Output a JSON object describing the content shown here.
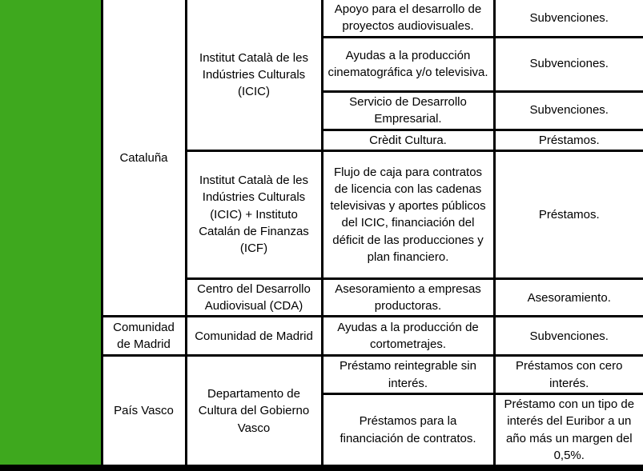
{
  "colors": {
    "band_green": "#3EA81E",
    "border_black": "#000000"
  },
  "table": {
    "regions": {
      "cataluna": "Cataluña",
      "comunidad_de_madrid": "Comunidad de Madrid",
      "pais_vasco": "País Vasco"
    },
    "institutions": {
      "icic": "Institut Català de les Indústries Culturals (ICIC)",
      "icic_icf": "Institut Català de les Indústries Culturals (ICIC) + Instituto Catalán de Finanzas (ICF)",
      "cda": "Centro del Desarrollo Audiovisual (CDA)",
      "comunidad_de_madrid": "Comunidad de Madrid",
      "gobierno_vasco": "Departamento de Cultura del Gobierno Vasco"
    },
    "rows": [
      {
        "description": "Apoyo para el desarrollo de proyectos audiovisuales.",
        "support_type": "Subvenciones."
      },
      {
        "description": "Ayudas a la producción cinematográfica y/o televisiva.",
        "support_type": "Subvenciones."
      },
      {
        "description": "Servicio de Desarrollo Empresarial.",
        "support_type": "Subvenciones."
      },
      {
        "description": "Crèdit Cultura.",
        "support_type": "Préstamos."
      },
      {
        "description": "Flujo de caja para contratos de licencia con las cadenas televisivas y aportes públicos del ICIC, financiación del déficit de las producciones y plan financiero.",
        "support_type": "Préstamos."
      },
      {
        "description": "Asesoramiento a empresas productoras.",
        "support_type": "Asesoramiento."
      },
      {
        "description": "Ayudas a la producción de cortometrajes.",
        "support_type": "Subvenciones."
      },
      {
        "description": "Préstamo reintegrable sin interés.",
        "support_type": "Préstamos con cero interés."
      },
      {
        "description": "Préstamos para la financiación de contratos.",
        "support_type": "Préstamo con un tipo de interés del Euribor a un año más un margen del 0,5%."
      }
    ]
  }
}
